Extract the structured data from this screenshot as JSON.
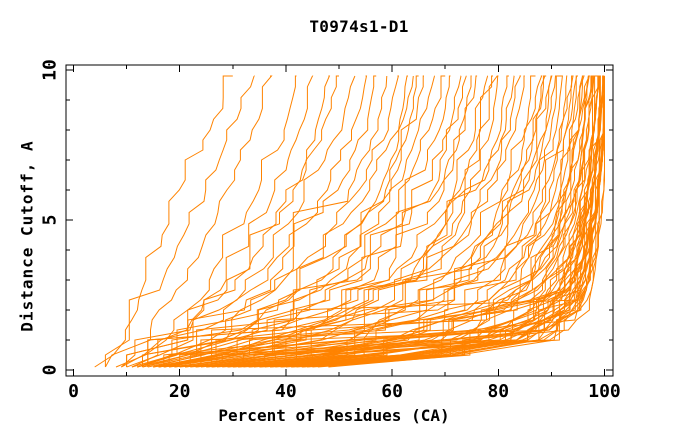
{
  "chart_data": {
    "type": "line",
    "title": "T0974s1-D1",
    "xlabel": "Percent of Residues (CA)",
    "ylabel": "Distance Cutoff, A",
    "xlim": [
      0,
      100
    ],
    "ylim": [
      0,
      10
    ],
    "x_ticks_major": [
      0,
      20,
      40,
      60,
      80,
      100
    ],
    "x_ticks_minor": [
      10,
      30,
      50,
      70,
      90
    ],
    "y_ticks_major": [
      0,
      5,
      10
    ],
    "y_ticks_minor": [
      1,
      2,
      3,
      4,
      6,
      7,
      8,
      9
    ],
    "grid": false,
    "legend": "none",
    "line_color": "#ff8300",
    "axis_color": "#000000",
    "background": "#ffffff",
    "curves_schema": "each curve lists estimated percent-of-residues values at the distance cutoffs in cutoff_grid (ensemble of model accuracy curves, overlapping heavily)",
    "cutoff_grid": [
      0.1,
      0.5,
      1,
      2,
      3,
      4.5,
      6,
      8,
      9.8
    ],
    "curves": [
      [
        4,
        7,
        9,
        12,
        14,
        17,
        20,
        26,
        30
      ],
      [
        6,
        8,
        11,
        14,
        17,
        21,
        25,
        30,
        34
      ],
      [
        6,
        9,
        13,
        17,
        21,
        25,
        29,
        34,
        37
      ],
      [
        8,
        12,
        17,
        22,
        26,
        31,
        35,
        40,
        42
      ],
      [
        9,
        13,
        18,
        24,
        29,
        34,
        38,
        43,
        45
      ],
      [
        10,
        15,
        20,
        26,
        31,
        37,
        42,
        46,
        48
      ],
      [
        9,
        14,
        19,
        26,
        31,
        37,
        42,
        47,
        50
      ],
      [
        10,
        15,
        21,
        28,
        34,
        40,
        45,
        50,
        53
      ],
      [
        11,
        16,
        22,
        30,
        36,
        42,
        48,
        53,
        55
      ],
      [
        10,
        16,
        23,
        31,
        38,
        44,
        50,
        55,
        57
      ],
      [
        12,
        18,
        25,
        33,
        40,
        47,
        52,
        57,
        59
      ],
      [
        11,
        18,
        26,
        34,
        41,
        48,
        54,
        59,
        61
      ],
      [
        12,
        19,
        27,
        36,
        43,
        50,
        56,
        61,
        63
      ],
      [
        13,
        20,
        28,
        37,
        45,
        52,
        58,
        62,
        64
      ],
      [
        12,
        20,
        29,
        38,
        46,
        53,
        59,
        63,
        65
      ],
      [
        13,
        21,
        30,
        39,
        47,
        55,
        60,
        64,
        66
      ],
      [
        12,
        20,
        30,
        41,
        49,
        56,
        61,
        65,
        68
      ],
      [
        13,
        22,
        32,
        43,
        51,
        58,
        63,
        67,
        70
      ],
      [
        14,
        23,
        33,
        45,
        53,
        60,
        65,
        69,
        71
      ],
      [
        13,
        23,
        34,
        46,
        54,
        62,
        67,
        71,
        73
      ],
      [
        15,
        25,
        36,
        48,
        56,
        63,
        69,
        73,
        75
      ],
      [
        14,
        25,
        37,
        49,
        58,
        65,
        70,
        74,
        76
      ],
      [
        16,
        27,
        38,
        51,
        60,
        67,
        72,
        76,
        78
      ],
      [
        15,
        27,
        39,
        52,
        61,
        68,
        73,
        77,
        79
      ],
      [
        16,
        28,
        41,
        54,
        63,
        70,
        75,
        79,
        80
      ],
      [
        14,
        24,
        35,
        47,
        55,
        63,
        68,
        72,
        74
      ],
      [
        17,
        29,
        42,
        55,
        64,
        71,
        76,
        80,
        82
      ],
      [
        16,
        28,
        40,
        53,
        62,
        69,
        74,
        78,
        80
      ],
      [
        18,
        30,
        43,
        56,
        65,
        72,
        77,
        81,
        83
      ],
      [
        17,
        30,
        44,
        57,
        66,
        73,
        78,
        82,
        84
      ],
      [
        15,
        30,
        45,
        60,
        68,
        74,
        79,
        83,
        85
      ],
      [
        16,
        32,
        47,
        62,
        70,
        76,
        81,
        85,
        87
      ],
      [
        17,
        33,
        49,
        64,
        72,
        78,
        82,
        86,
        88
      ],
      [
        18,
        35,
        51,
        65,
        73,
        79,
        84,
        87,
        89
      ],
      [
        16,
        33,
        50,
        64,
        72,
        79,
        83,
        87,
        89
      ],
      [
        19,
        36,
        53,
        67,
        75,
        81,
        85,
        89,
        90
      ],
      [
        18,
        36,
        54,
        68,
        76,
        82,
        86,
        89,
        91
      ],
      [
        20,
        38,
        55,
        69,
        77,
        83,
        87,
        90,
        92
      ],
      [
        19,
        38,
        56,
        70,
        78,
        84,
        88,
        91,
        92
      ],
      [
        21,
        40,
        58,
        72,
        79,
        85,
        89,
        92,
        93
      ],
      [
        20,
        40,
        59,
        73,
        80,
        86,
        90,
        92,
        94
      ],
      [
        22,
        42,
        60,
        74,
        81,
        87,
        90,
        93,
        94
      ],
      [
        21,
        42,
        61,
        75,
        82,
        88,
        91,
        93,
        95
      ],
      [
        23,
        44,
        62,
        76,
        83,
        88,
        92,
        94,
        95
      ],
      [
        22,
        44,
        63,
        77,
        84,
        89,
        92,
        94,
        96
      ],
      [
        24,
        46,
        65,
        78,
        85,
        90,
        93,
        95,
        96
      ],
      [
        17,
        34,
        52,
        66,
        74,
        80,
        85,
        88,
        90
      ],
      [
        25,
        47,
        66,
        79,
        86,
        91,
        93,
        95,
        97
      ],
      [
        23,
        45,
        64,
        78,
        85,
        90,
        93,
        95,
        96
      ],
      [
        26,
        48,
        67,
        80,
        87,
        91,
        94,
        96,
        97
      ],
      [
        24,
        46,
        66,
        79,
        86,
        91,
        93,
        95,
        97
      ],
      [
        27,
        50,
        69,
        82,
        88,
        92,
        95,
        96,
        98
      ],
      [
        25,
        48,
        68,
        81,
        87,
        92,
        94,
        96,
        97
      ],
      [
        28,
        52,
        71,
        83,
        89,
        93,
        95,
        97,
        98
      ],
      [
        26,
        50,
        70,
        82,
        88,
        92,
        95,
        96,
        98
      ],
      [
        28,
        54,
        74,
        86,
        91,
        94,
        96,
        98,
        99
      ],
      [
        30,
        56,
        76,
        87,
        92,
        95,
        97,
        98,
        99
      ],
      [
        32,
        58,
        78,
        88,
        93,
        95,
        97,
        99,
        100
      ],
      [
        29,
        56,
        77,
        88,
        92,
        95,
        97,
        98,
        99
      ],
      [
        33,
        60,
        79,
        89,
        93,
        96,
        97,
        99,
        100
      ],
      [
        31,
        58,
        78,
        89,
        93,
        95,
        97,
        98,
        99
      ],
      [
        34,
        61,
        80,
        90,
        94,
        96,
        98,
        99,
        100
      ],
      [
        30,
        57,
        77,
        88,
        92,
        95,
        97,
        98,
        99
      ],
      [
        35,
        62,
        81,
        90,
        94,
        96,
        98,
        99,
        100
      ],
      [
        32,
        59,
        79,
        89,
        93,
        96,
        97,
        99,
        99
      ],
      [
        36,
        63,
        82,
        91,
        94,
        96,
        98,
        99,
        100
      ],
      [
        33,
        61,
        80,
        90,
        94,
        96,
        97,
        99,
        100
      ],
      [
        37,
        64,
        83,
        91,
        95,
        97,
        98,
        99,
        100
      ],
      [
        34,
        62,
        81,
        90,
        94,
        96,
        98,
        99,
        99
      ],
      [
        38,
        66,
        84,
        92,
        95,
        97,
        98,
        99,
        100
      ],
      [
        35,
        63,
        82,
        91,
        94,
        96,
        98,
        99,
        100
      ],
      [
        39,
        67,
        85,
        92,
        95,
        97,
        98,
        100,
        100
      ],
      [
        36,
        64,
        83,
        91,
        95,
        97,
        98,
        99,
        100
      ],
      [
        40,
        68,
        86,
        93,
        96,
        97,
        99,
        100,
        100
      ],
      [
        37,
        65,
        84,
        92,
        95,
        97,
        98,
        99,
        100
      ],
      [
        41,
        69,
        86,
        93,
        96,
        98,
        99,
        100,
        100
      ],
      [
        38,
        66,
        85,
        92,
        95,
        97,
        98,
        99,
        100
      ],
      [
        42,
        70,
        87,
        94,
        96,
        98,
        99,
        100,
        100
      ],
      [
        39,
        68,
        86,
        93,
        96,
        97,
        99,
        99,
        100
      ],
      [
        43,
        71,
        88,
        94,
        97,
        98,
        99,
        100,
        100
      ],
      [
        40,
        69,
        87,
        93,
        96,
        98,
        99,
        100,
        100
      ],
      [
        44,
        72,
        88,
        95,
        97,
        98,
        99,
        100,
        100
      ],
      [
        41,
        70,
        87,
        94,
        96,
        98,
        99,
        100,
        100
      ],
      [
        45,
        73,
        89,
        95,
        97,
        98,
        99,
        100,
        100
      ],
      [
        42,
        71,
        88,
        94,
        97,
        98,
        99,
        100,
        100
      ],
      [
        27,
        52,
        72,
        85,
        90,
        93,
        96,
        97,
        98
      ],
      [
        46,
        74,
        90,
        95,
        97,
        99,
        99,
        100,
        100
      ],
      [
        43,
        72,
        89,
        95,
        97,
        98,
        99,
        100,
        100
      ],
      [
        29,
        55,
        75,
        87,
        92,
        94,
        96,
        98,
        99
      ],
      [
        47,
        75,
        90,
        96,
        98,
        99,
        100,
        100,
        100
      ],
      [
        44,
        73,
        89,
        95,
        97,
        98,
        99,
        100,
        100
      ],
      [
        31,
        57,
        76,
        88,
        92,
        95,
        97,
        98,
        99
      ],
      [
        48,
        76,
        91,
        96,
        98,
        99,
        100,
        100,
        100
      ],
      [
        45,
        74,
        90,
        96,
        97,
        99,
        99,
        100,
        100
      ],
      [
        26,
        51,
        71,
        84,
        90,
        93,
        95,
        97,
        98
      ]
    ]
  }
}
